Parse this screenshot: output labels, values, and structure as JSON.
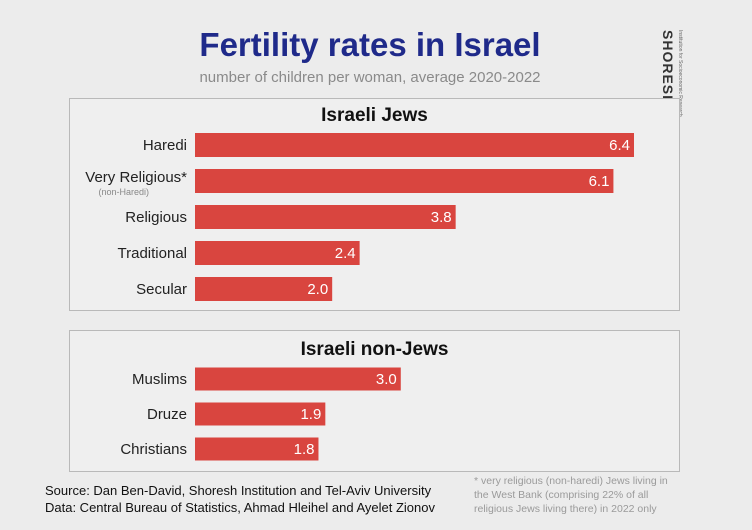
{
  "logo": {
    "name": "SHORESH",
    "tagline": "Institution for Socioeconomic Research"
  },
  "footer": {
    "source_line": "Source: Dan Ben-David, Shoresh Institution and Tel-Aviv University",
    "data_line": "Data: Central Bureau of Statistics, Ahmad Hleihel and Ayelet Zionov",
    "footnote_line1": "* very religious (non-haredi) Jews living in",
    "footnote_line2": "the West Bank (comprising 22% of all",
    "footnote_line3": "religious Jews living there) in 2022 only"
  },
  "chart_data": {
    "type": "bar",
    "orientation": "horizontal",
    "title": "Fertility rates in Israel",
    "subtitle": "number of children per woman, average 2020-2022",
    "bar_color": "#d9453f",
    "xlim": [
      0,
      6.4
    ],
    "grid": false,
    "legend": "none",
    "panels": [
      {
        "title": "Israeli Jews",
        "categories": [
          "Haredi",
          "Very Religious*",
          "Religious",
          "Traditional",
          "Secular"
        ],
        "category_notes": [
          "",
          "(non-Haredi)",
          "",
          "",
          ""
        ],
        "values": [
          6.4,
          6.1,
          3.8,
          2.4,
          2.0
        ],
        "value_labels": [
          "6.4",
          "6.1",
          "3.8",
          "2.4",
          "2.0"
        ]
      },
      {
        "title": "Israeli non-Jews",
        "categories": [
          "Muslims",
          "Druze",
          "Christians"
        ],
        "category_notes": [
          "",
          "",
          ""
        ],
        "values": [
          3.0,
          1.9,
          1.8
        ],
        "value_labels": [
          "3.0",
          "1.9",
          "1.8"
        ]
      }
    ]
  }
}
